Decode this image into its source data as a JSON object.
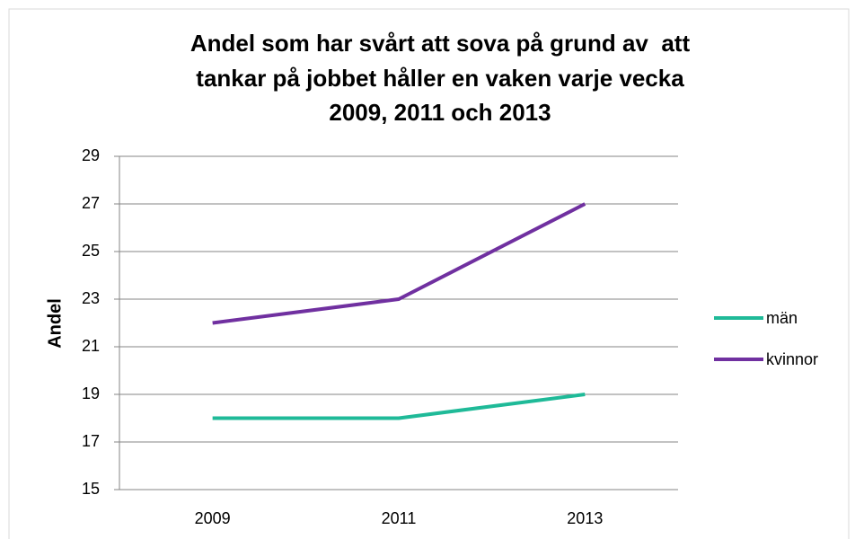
{
  "chart_data": {
    "type": "line",
    "title": [
      "Andel som har svårt att sova på grund av  att",
      "tankar på jobbet håller en vaken varje vecka",
      "2009, 2011 och 2013"
    ],
    "y_label": "Andel",
    "categories": [
      "2009",
      "2011",
      "2013"
    ],
    "series": [
      {
        "name": "män",
        "color": "#1fba98",
        "values": [
          18,
          18,
          19
        ]
      },
      {
        "name": "kvinnor",
        "color": "#7030a0",
        "values": [
          22,
          23,
          27
        ]
      }
    ],
    "ylim": [
      15,
      29
    ],
    "yticks": [
      15,
      17,
      19,
      21,
      23,
      25,
      27,
      29
    ],
    "grid": true,
    "legend": "right"
  }
}
